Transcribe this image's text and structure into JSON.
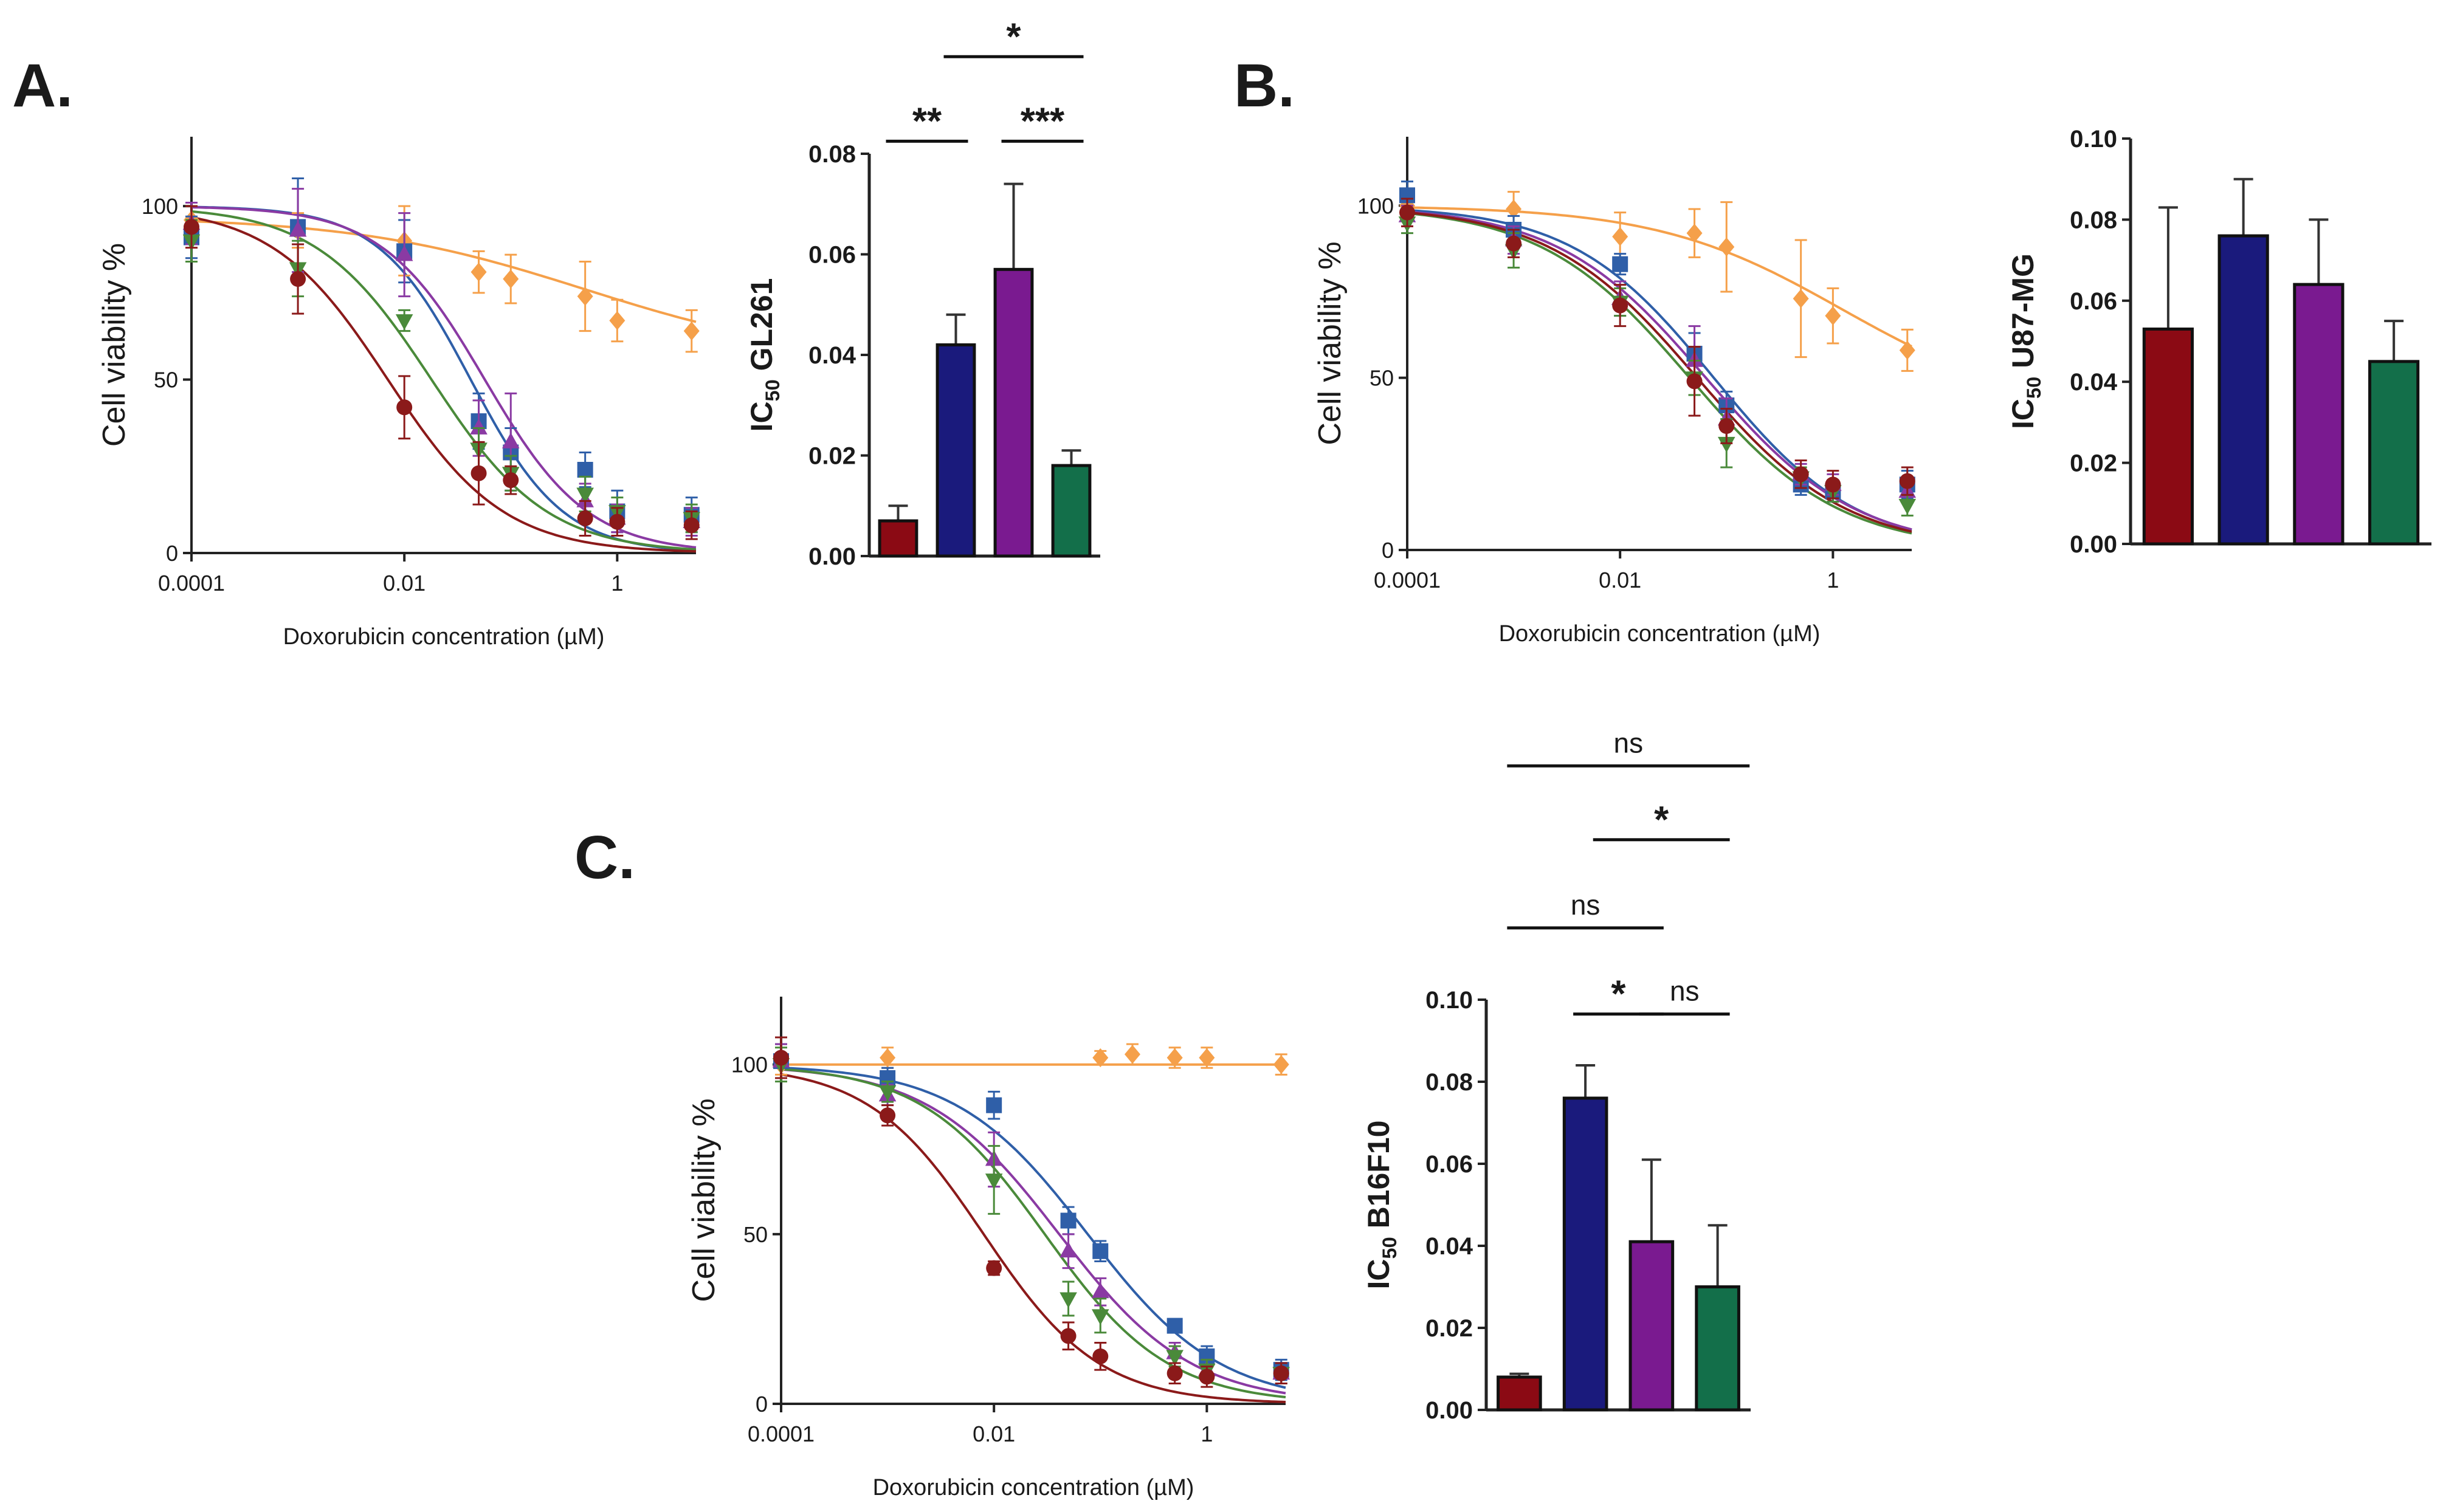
{
  "panel_labels": [
    "A.",
    "B.",
    "C."
  ],
  "colors": {
    "red": "#8b0a14",
    "navy": "#1a1a7c",
    "purple": "#7a1a90",
    "green": "#136f4a",
    "curve_orange": "#f5a04a",
    "curve_blue": "#2f5fa8",
    "curve_purple": "#8a3aa3",
    "curve_green": "#4a8a3a",
    "curve_red": "#8b1a1a"
  },
  "chart_data": [
    {
      "id": "A-curve",
      "panel": "A.",
      "type": "line",
      "xscale": "log",
      "xlabel": "Doxorubicin concentration (µM)",
      "ylabel": "Cell viability %",
      "xlim": [
        0.0001,
        5.5
      ],
      "ylim": [
        0,
        120
      ],
      "xticks": [
        0.0001,
        0.01,
        1
      ],
      "xtick_labels": [
        "0.0001",
        "0.01",
        "1"
      ],
      "yticks": [
        0,
        50,
        100
      ],
      "ytick_labels": [
        "0",
        "50",
        "100"
      ],
      "series": [
        {
          "name": "orange",
          "marker": "diamond",
          "color": "#f5a04a",
          "x": [
            0.0001,
            0.001,
            0.01,
            0.05,
            0.1,
            0.5,
            1,
            5
          ],
          "y": [
            96,
            93,
            90,
            81,
            79,
            74,
            67,
            64
          ],
          "err": [
            4,
            5,
            10,
            6,
            7,
            10,
            6,
            6
          ],
          "fit": {
            "bottom": 55,
            "top": 97,
            "ic50": 0.5,
            "hill": 0.4
          }
        },
        {
          "name": "blue",
          "marker": "square",
          "color": "#2f5fa8",
          "x": [
            0.0001,
            0.001,
            0.01,
            0.05,
            0.1,
            0.5,
            1,
            5
          ],
          "y": [
            91,
            94,
            87,
            38,
            29,
            24,
            12,
            11
          ],
          "err": [
            6,
            14,
            9,
            8,
            7,
            5,
            6,
            5
          ],
          "fit": {
            "bottom": 0,
            "top": 100,
            "ic50": 0.042,
            "hill": 1.0
          }
        },
        {
          "name": "purple",
          "marker": "triangle-up",
          "color": "#8a3aa3",
          "x": [
            0.0001,
            0.001,
            0.01,
            0.05,
            0.1,
            0.5,
            1,
            5
          ],
          "y": [
            95,
            93,
            86,
            36,
            32,
            15,
            10,
            9
          ],
          "err": [
            6,
            12,
            12,
            8,
            14,
            5,
            4,
            4
          ],
          "fit": {
            "bottom": 0,
            "top": 100,
            "ic50": 0.057,
            "hill": 0.9
          }
        },
        {
          "name": "green",
          "marker": "triangle-down",
          "color": "#4a8a3a",
          "x": [
            0.0001,
            0.001,
            0.01,
            0.05,
            0.1,
            0.5,
            1,
            5
          ],
          "y": [
            90,
            82,
            67,
            30,
            23,
            17,
            12,
            10
          ],
          "err": [
            6,
            8,
            3,
            6,
            5,
            5,
            4,
            4
          ],
          "fit": {
            "bottom": 0,
            "top": 100,
            "ic50": 0.018,
            "hill": 0.8
          }
        },
        {
          "name": "red",
          "marker": "circle",
          "color": "#8b1a1a",
          "x": [
            0.0001,
            0.001,
            0.01,
            0.05,
            0.1,
            0.5,
            1,
            5
          ],
          "y": [
            94,
            79,
            42,
            23,
            21,
            10,
            9,
            8
          ],
          "err": [
            6,
            10,
            9,
            9,
            4,
            5,
            4,
            4
          ],
          "fit": {
            "bottom": 0,
            "top": 100,
            "ic50": 0.007,
            "hill": 0.8
          }
        }
      ]
    },
    {
      "id": "A-bar",
      "panel": "A.",
      "type": "bar",
      "ylabel_main": "IC",
      "ylabel_sub": "50",
      "ylabel_rest": " GL261",
      "ylim": [
        0,
        0.08
      ],
      "yticks": [
        0,
        0.02,
        0.04,
        0.06,
        0.08
      ],
      "ytick_labels": [
        "0.00",
        "0.02",
        "0.04",
        "0.06",
        "0.08"
      ],
      "colors": [
        "#8b0a14",
        "#1a1a7c",
        "#7a1a90",
        "#136f4a"
      ],
      "values": [
        0.007,
        0.042,
        0.057,
        0.018
      ],
      "errors": [
        0.003,
        0.006,
        0.017,
        0.003
      ],
      "significance": [
        {
          "from": 0,
          "to": 1,
          "label": "**",
          "level": 0.0825
        },
        {
          "from": 2,
          "to": 3,
          "label": "***",
          "level": 0.0825
        },
        {
          "from": 1,
          "to": 3,
          "label": "*",
          "level": 0.0993
        }
      ]
    },
    {
      "id": "B-curve",
      "panel": "B.",
      "type": "line",
      "xscale": "log",
      "xlabel": "Doxorubicin concentration (µM)",
      "ylabel": "Cell viability %",
      "xlim": [
        0.0001,
        5.5
      ],
      "ylim": [
        0,
        120
      ],
      "xticks": [
        0.0001,
        0.01,
        1
      ],
      "xtick_labels": [
        "0.0001",
        "0.01",
        "1"
      ],
      "yticks": [
        0,
        50,
        100
      ],
      "ytick_labels": [
        "0",
        "50",
        "100"
      ],
      "series": [
        {
          "name": "orange",
          "marker": "diamond",
          "color": "#f5a04a",
          "x": [
            0.0001,
            0.001,
            0.01,
            0.05,
            0.1,
            0.5,
            1,
            5
          ],
          "y": [
            100,
            99,
            91,
            92,
            88,
            73,
            68,
            58
          ],
          "err": [
            4,
            5,
            7,
            7,
            13,
            17,
            8,
            6
          ],
          "fit": {
            "bottom": 40,
            "top": 100,
            "ic50": 1.2,
            "hill": 0.5
          }
        },
        {
          "name": "blue",
          "marker": "square",
          "color": "#2f5fa8",
          "x": [
            0.0001,
            0.001,
            0.01,
            0.05,
            0.1,
            0.5,
            1,
            5
          ],
          "y": [
            103,
            93,
            83,
            57,
            42,
            19,
            17,
            19
          ],
          "err": [
            4,
            4,
            3,
            6,
            4,
            3,
            3,
            4
          ],
          "fit": {
            "bottom": 0,
            "top": 100,
            "ic50": 0.076,
            "hill": 0.65
          }
        },
        {
          "name": "purple",
          "marker": "triangle-up",
          "color": "#8a3aa3",
          "x": [
            0.0001,
            0.001,
            0.01,
            0.05,
            0.1,
            0.5,
            1,
            5
          ],
          "y": [
            97,
            90,
            73,
            55,
            38,
            22,
            19,
            17
          ],
          "err": [
            3,
            4,
            5,
            10,
            6,
            3,
            3,
            3
          ],
          "fit": {
            "bottom": 0,
            "top": 100,
            "ic50": 0.064,
            "hill": 0.62
          }
        },
        {
          "name": "green",
          "marker": "triangle-down",
          "color": "#4a8a3a",
          "x": [
            0.0001,
            0.001,
            0.01,
            0.05,
            0.1,
            0.5,
            1,
            5
          ],
          "y": [
            95,
            87,
            72,
            50,
            31,
            21,
            17,
            13
          ],
          "err": [
            3,
            5,
            4,
            5,
            7,
            3,
            3,
            3
          ],
          "fit": {
            "bottom": 0,
            "top": 100,
            "ic50": 0.045,
            "hill": 0.62
          }
        },
        {
          "name": "red",
          "marker": "circle",
          "color": "#8b1a1a",
          "x": [
            0.0001,
            0.001,
            0.01,
            0.05,
            0.1,
            0.5,
            1,
            5
          ],
          "y": [
            98,
            89,
            71,
            49,
            36,
            22,
            19,
            20
          ],
          "err": [
            4,
            4,
            6,
            10,
            5,
            4,
            4,
            4
          ],
          "fit": {
            "bottom": 0,
            "top": 100,
            "ic50": 0.053,
            "hill": 0.62
          }
        }
      ]
    },
    {
      "id": "B-bar",
      "panel": "B.",
      "type": "bar",
      "ylabel_main": "IC",
      "ylabel_sub": "50",
      "ylabel_rest": " U87-MG",
      "ylim": [
        0,
        0.1
      ],
      "yticks": [
        0,
        0.02,
        0.04,
        0.06,
        0.08,
        0.1
      ],
      "ytick_labels": [
        "0.00",
        "0.02",
        "0.04",
        "0.06",
        "0.08",
        "0.10"
      ],
      "colors": [
        "#8b0a14",
        "#1a1a7c",
        "#7a1a90",
        "#136f4a"
      ],
      "values": [
        0.053,
        0.076,
        0.064,
        0.045
      ],
      "errors": [
        0.03,
        0.014,
        0.016,
        0.01
      ],
      "significance": []
    },
    {
      "id": "C-curve",
      "panel": "C.",
      "type": "line",
      "xscale": "log",
      "xlabel": "Doxorubicin concentration (µM)",
      "ylabel": "Cell viability %",
      "xlim": [
        0.0001,
        5.5
      ],
      "ylim": [
        0,
        120
      ],
      "xticks": [
        0.0001,
        0.01,
        1
      ],
      "xtick_labels": [
        "0.0001",
        "0.01",
        "1"
      ],
      "yticks": [
        0,
        50,
        100
      ],
      "ytick_labels": [
        "0",
        "50",
        "100"
      ],
      "series": [
        {
          "name": "orange",
          "marker": "diamond",
          "color": "#f5a04a",
          "x": [
            0.0001,
            0.001,
            0.1,
            0.2,
            0.5,
            1,
            5
          ],
          "y": [
            100,
            102,
            102,
            103,
            102,
            102,
            100
          ],
          "err": [
            3,
            3,
            2,
            3,
            3,
            3,
            3
          ],
          "fit": {
            "bottom": 100,
            "top": 100,
            "ic50": 1,
            "hill": 1
          }
        },
        {
          "name": "blue",
          "marker": "square",
          "color": "#2f5fa8",
          "x": [
            0.0001,
            0.001,
            0.01,
            0.05,
            0.1,
            0.5,
            1,
            5
          ],
          "y": [
            101,
            96,
            88,
            54,
            45,
            23,
            14,
            10
          ],
          "err": [
            5,
            3,
            4,
            4,
            3,
            2,
            3,
            3
          ],
          "fit": {
            "bottom": 0,
            "top": 100,
            "ic50": 0.076,
            "hill": 0.7
          }
        },
        {
          "name": "purple",
          "marker": "triangle-up",
          "color": "#8a3aa3",
          "x": [
            0.0001,
            0.001,
            0.01,
            0.05,
            0.1,
            0.5,
            1,
            5
          ],
          "y": [
            101,
            91,
            72,
            45,
            33,
            15,
            10,
            9
          ],
          "err": [
            5,
            3,
            8,
            5,
            4,
            3,
            3,
            3
          ],
          "fit": {
            "bottom": 0,
            "top": 100,
            "ic50": 0.041,
            "hill": 0.7
          }
        },
        {
          "name": "green",
          "marker": "triangle-down",
          "color": "#4a8a3a",
          "x": [
            0.0001,
            0.001,
            0.01,
            0.05,
            0.1,
            0.5,
            1,
            5
          ],
          "y": [
            100,
            92,
            66,
            31,
            26,
            14,
            10,
            9
          ],
          "err": [
            5,
            3,
            10,
            5,
            5,
            3,
            3,
            3
          ],
          "fit": {
            "bottom": 0,
            "top": 100,
            "ic50": 0.03,
            "hill": 0.75
          }
        },
        {
          "name": "red",
          "marker": "circle",
          "color": "#8b1a1a",
          "x": [
            0.0001,
            0.001,
            0.01,
            0.05,
            0.1,
            0.5,
            1,
            5
          ],
          "y": [
            102,
            85,
            40,
            20,
            14,
            9,
            8,
            9
          ],
          "err": [
            6,
            3,
            2,
            4,
            4,
            3,
            3,
            3
          ],
          "fit": {
            "bottom": 0,
            "top": 100,
            "ic50": 0.008,
            "hill": 0.8
          }
        }
      ]
    },
    {
      "id": "C-bar",
      "panel": "C.",
      "type": "bar",
      "ylabel_main": "IC",
      "ylabel_sub": "50",
      "ylabel_rest": " B16F10",
      "ylim": [
        0,
        0.1
      ],
      "yticks": [
        0,
        0.02,
        0.04,
        0.06,
        0.08,
        0.1
      ],
      "ytick_labels": [
        "0.00",
        "0.02",
        "0.04",
        "0.06",
        "0.08",
        "0.10"
      ],
      "colors": [
        "#8b0a14",
        "#1a1a7c",
        "#7a1a90",
        "#136f4a"
      ],
      "values": [
        0.008,
        0.076,
        0.041,
        0.03
      ],
      "errors": [
        0.0008,
        0.008,
        0.02,
        0.015
      ],
      "significance": [
        {
          "from": 1,
          "to": 2,
          "label": "*",
          "level": 0.0965
        },
        {
          "from": 2,
          "to": 3,
          "label": "ns",
          "level": 0.0965
        },
        {
          "from": 0,
          "to": 2,
          "label": "ns",
          "level": 0.1175
        },
        {
          "from": 1.3,
          "to": 3,
          "label": "*",
          "level": 0.139
        },
        {
          "from": 0,
          "to": 3.3,
          "label": "ns",
          "level": 0.157
        }
      ]
    }
  ]
}
